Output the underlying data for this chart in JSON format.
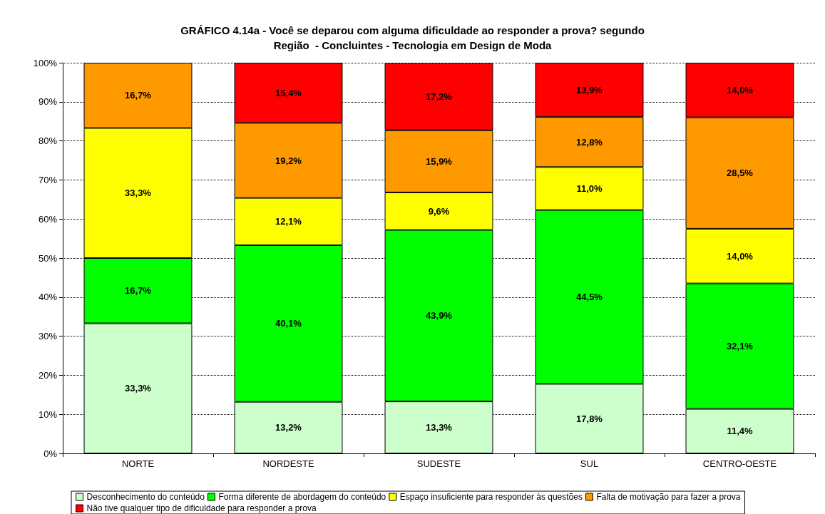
{
  "chart_data": {
    "type": "bar",
    "stacked": true,
    "title": "GRÁFICO 4.14a - Você se deparou com alguma dificuldade ao responder a prova? segundo",
    "subtitle": "Região  - Concluintes - Tecnologia em Design de Moda",
    "categories": [
      "NORTE",
      "NORDESTE",
      "SUDESTE",
      "SUL",
      "CENTRO-OESTE"
    ],
    "series": [
      {
        "name": "Desconhecimento do conteúdo",
        "color": "#ccffcc",
        "values": [
          33.3,
          13.2,
          13.3,
          17.8,
          11.4
        ],
        "value_labels": [
          "33,3%",
          "13,2%",
          "13,3%",
          "17,8%",
          "11,4%"
        ]
      },
      {
        "name": "Forma diferente de abordagem do conteúdo",
        "color": "#00ff00",
        "values": [
          16.7,
          40.1,
          43.9,
          44.5,
          32.1
        ],
        "value_labels": [
          "16,7%",
          "40,1%",
          "43,9%",
          "44,5%",
          "32,1%"
        ]
      },
      {
        "name": "Espaço insuficiente para responder às questões",
        "color": "#ffff00",
        "values": [
          33.3,
          12.1,
          9.6,
          11.0,
          14.0
        ],
        "value_labels": [
          "33,3%",
          "12,1%",
          "9,6%",
          "11,0%",
          "14,0%"
        ]
      },
      {
        "name": "Falta de motivação para fazer a prova",
        "color": "#ff9900",
        "values": [
          16.7,
          19.2,
          15.9,
          12.8,
          28.5
        ],
        "value_labels": [
          "16,7%",
          "19,2%",
          "15,9%",
          "12,8%",
          "28,5%"
        ]
      },
      {
        "name": "Não tive qualquer tipo de dificuldade para responder a prova",
        "color": "#ff0000",
        "values": [
          null,
          15.4,
          17.2,
          13.9,
          14.0
        ],
        "value_labels": [
          null,
          "15,4%",
          "17,2%",
          "13,9%",
          "14,0%"
        ]
      }
    ],
    "ylim": [
      0,
      100
    ],
    "yticks": [
      {
        "value": 0,
        "label": "0%"
      },
      {
        "value": 10,
        "label": "10%"
      },
      {
        "value": 20,
        "label": "20%"
      },
      {
        "value": 30,
        "label": "30%"
      },
      {
        "value": 40,
        "label": "40%"
      },
      {
        "value": 50,
        "label": "50%"
      },
      {
        "value": 60,
        "label": "60%"
      },
      {
        "value": 70,
        "label": "70%"
      },
      {
        "value": 80,
        "label": "80%"
      },
      {
        "value": 90,
        "label": "90%"
      },
      {
        "value": 100,
        "label": "100%"
      }
    ],
    "grid": "y",
    "legend": "bottom"
  }
}
